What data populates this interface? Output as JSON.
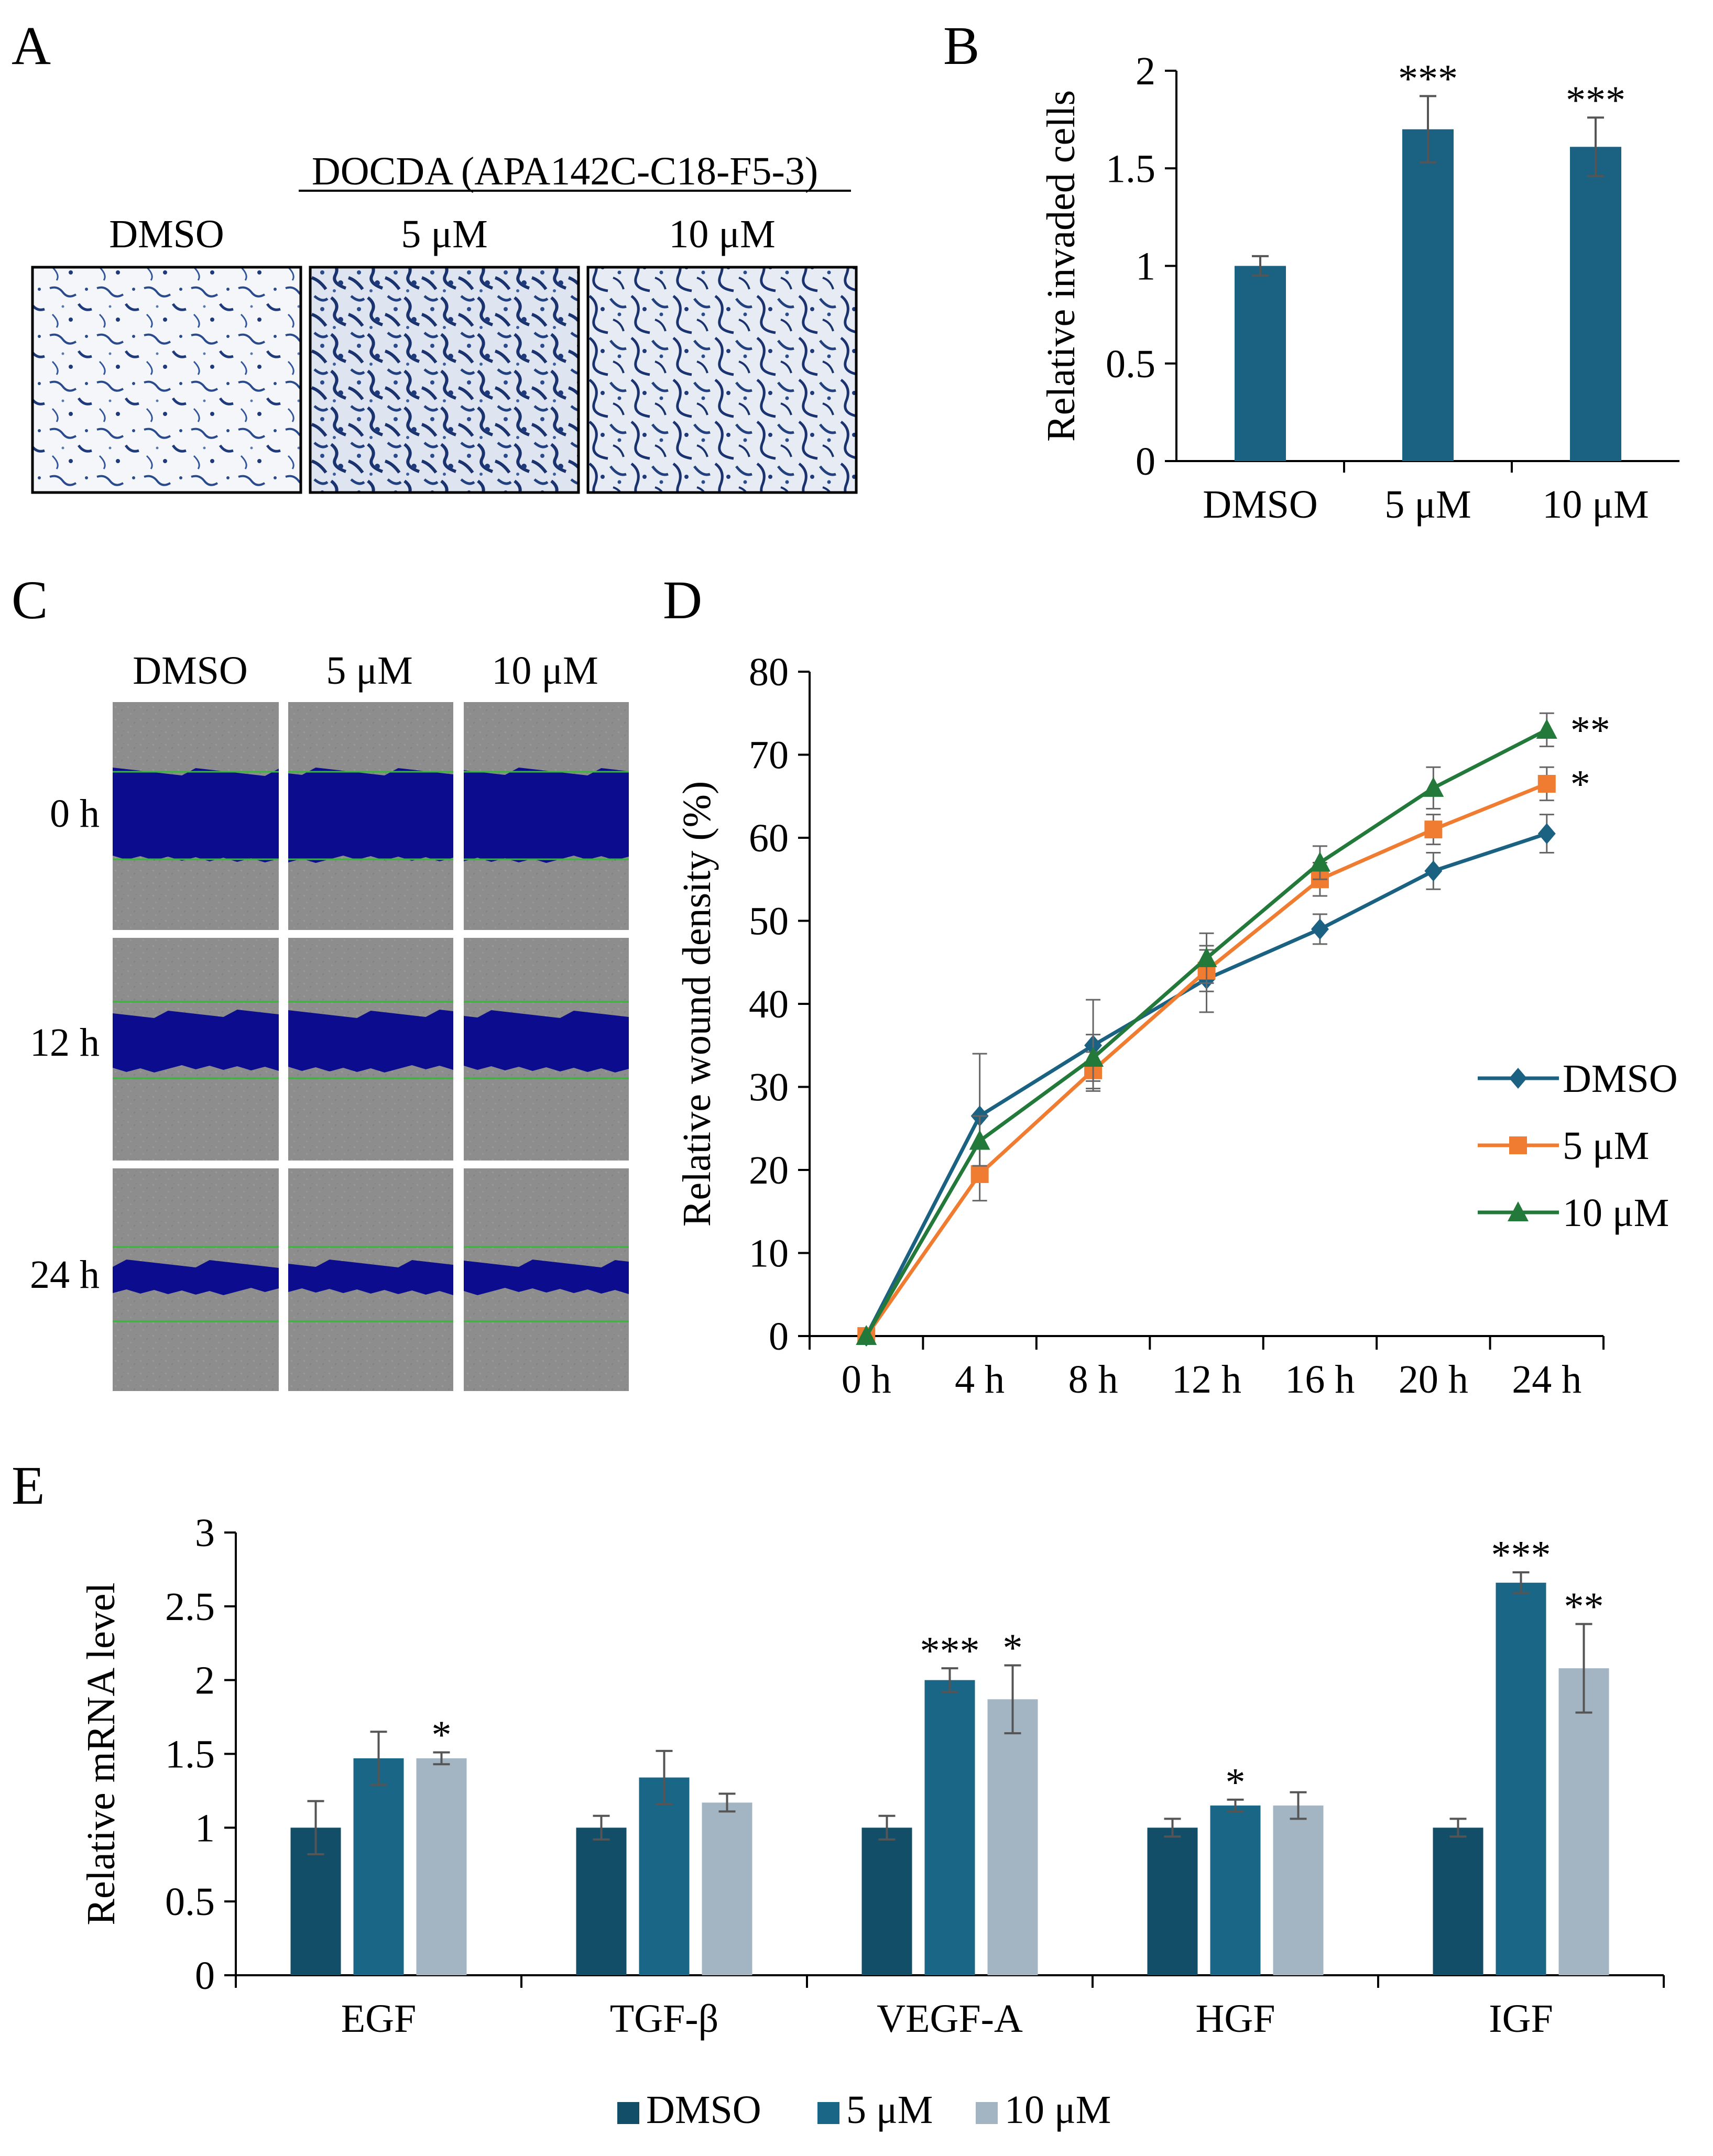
{
  "colors": {
    "dmso": "#1b6282",
    "c5": "#ef7c30",
    "c10": "#23793a",
    "bar_dark": "#134e68",
    "bar_mid": "#1a6686",
    "bar_light": "#a3b4c2",
    "stain": "#1f3a7a",
    "wound": "#0c0c8f",
    "edge": "#38b838",
    "grey": "#8d8d8d"
  },
  "panel_a": {
    "letter": "A",
    "treatment_title": "DOCDA (APA142C-C18-F5-3)",
    "columns": [
      "DMSO",
      "5 μM",
      "10 μM"
    ]
  },
  "panel_c": {
    "letter": "C",
    "columns": [
      "DMSO",
      "5 μM",
      "10 μM"
    ],
    "rows": [
      "0 h",
      "12 h",
      "24 h"
    ]
  },
  "chart_data": [
    {
      "id": "B",
      "letter": "B",
      "type": "bar",
      "categories": [
        "DMSO",
        "5 μM",
        "10 μM"
      ],
      "values": [
        1.0,
        1.7,
        1.61
      ],
      "errors": [
        0.05,
        0.17,
        0.15
      ],
      "significance": [
        "",
        "***",
        "***"
      ],
      "ylabel": "Relative invaded cells",
      "ylim": [
        0,
        2
      ],
      "yticks": [
        0,
        0.5,
        1,
        1.5,
        2
      ],
      "ytick_labels": [
        "0",
        "0.5",
        "1",
        "1.5",
        "2"
      ]
    },
    {
      "id": "D",
      "letter": "D",
      "type": "line",
      "x": [
        "0 h",
        "4 h",
        "8 h",
        "12 h",
        "16 h",
        "20 h",
        "24 h"
      ],
      "ylabel": "Relative wound density (%)",
      "ylim": [
        0,
        80
      ],
      "yticks": [
        0,
        10,
        20,
        30,
        40,
        50,
        60,
        70,
        80
      ],
      "legend_position": "right",
      "series": [
        {
          "name": "DMSO",
          "marker": "diamond",
          "values": [
            0,
            26.5,
            35,
            43,
            49,
            56,
            60.5
          ],
          "errors": [
            0,
            7.5,
            5.5,
            4,
            1.8,
            2.2,
            2.3
          ],
          "significance": ""
        },
        {
          "name": "5 μM",
          "marker": "square",
          "values": [
            0,
            19.5,
            32,
            44,
            55,
            61,
            66.5
          ],
          "errors": [
            0,
            3.2,
            2.2,
            2.5,
            2,
            1.8,
            2
          ],
          "significance": "*"
        },
        {
          "name": "10 μM",
          "marker": "triangle",
          "values": [
            0,
            23.5,
            33.5,
            45.5,
            57,
            66,
            73
          ],
          "errors": [
            0,
            3,
            2.8,
            3,
            2,
            2.5,
            2
          ],
          "significance": "**"
        }
      ]
    },
    {
      "id": "E",
      "letter": "E",
      "type": "bar",
      "categories": [
        "EGF",
        "TGF-β",
        "VEGF-A",
        "HGF",
        "IGF"
      ],
      "ylabel": "Relative mRNA level",
      "ylim": [
        0,
        3
      ],
      "yticks": [
        0,
        0.5,
        1,
        1.5,
        2,
        2.5,
        3
      ],
      "ytick_labels": [
        "0",
        "0.5",
        "1",
        "1.5",
        "2",
        "2.5",
        "3"
      ],
      "legend_position": "bottom",
      "series": [
        {
          "name": "DMSO",
          "values": [
            1.0,
            1.0,
            1.0,
            1.0,
            1.0
          ],
          "errors": [
            0.18,
            0.08,
            0.08,
            0.06,
            0.06
          ],
          "significance": [
            "",
            "",
            "",
            "",
            ""
          ]
        },
        {
          "name": "5 μM",
          "values": [
            1.47,
            1.34,
            2.0,
            1.15,
            2.66
          ],
          "errors": [
            0.18,
            0.18,
            0.08,
            0.04,
            0.07
          ],
          "significance": [
            "",
            "",
            "***",
            "*",
            "***"
          ]
        },
        {
          "name": "10 μM",
          "values": [
            1.47,
            1.17,
            1.87,
            1.15,
            2.08
          ],
          "errors": [
            0.04,
            0.06,
            0.23,
            0.09,
            0.3
          ],
          "significance": [
            "*",
            "",
            "*",
            "",
            "**"
          ]
        }
      ]
    }
  ]
}
